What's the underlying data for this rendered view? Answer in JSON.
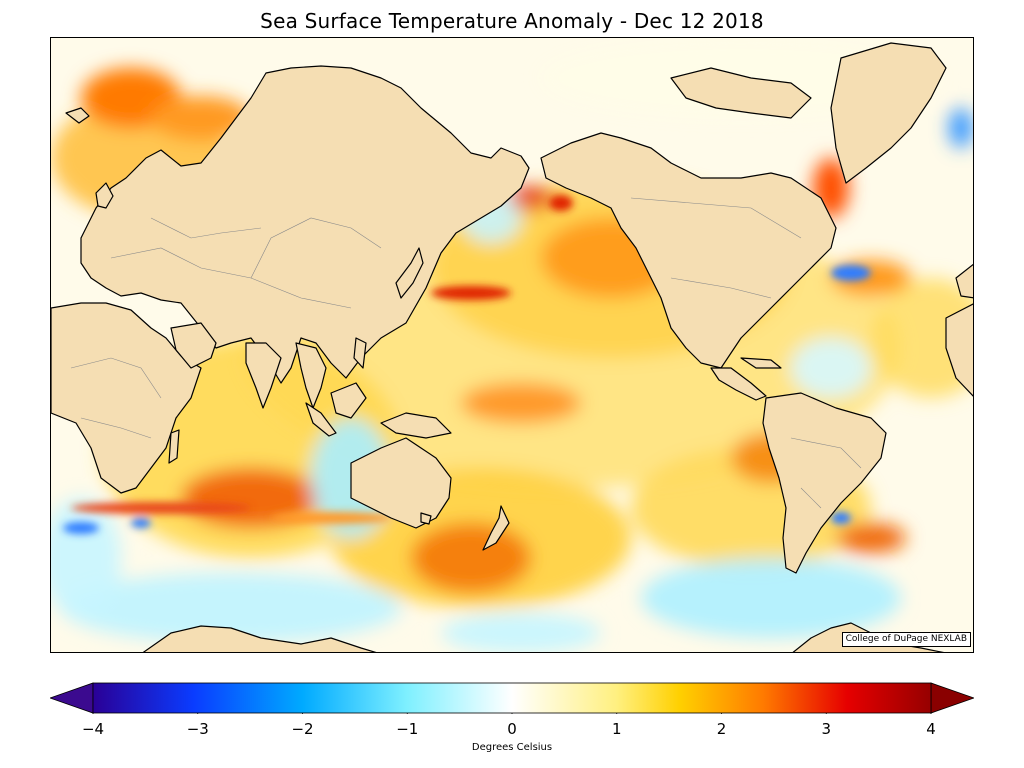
{
  "title": "Sea Surface Temperature Anomaly - Dec 12 2018",
  "credit": "College of DuPage NEXLAB",
  "colorbar": {
    "label": "Degrees Celsius",
    "min": -4,
    "max": 4,
    "ticks": [
      "−4",
      "−3",
      "−2",
      "−1",
      "0",
      "1",
      "2",
      "3",
      "4"
    ],
    "tick_values": [
      -4,
      -3,
      -2,
      -1,
      0,
      1,
      2,
      3,
      4
    ],
    "stops": [
      "#2a0096",
      "#0a3cff",
      "#00aaff",
      "#7ff0ff",
      "#ffffff",
      "#fff080",
      "#ffd000",
      "#ff7a00",
      "#e60000",
      "#960000"
    ]
  },
  "colors": {
    "land": "#f5deb3",
    "coastline": "#000000",
    "borders": "#777777",
    "warm": "#ffd24a",
    "hot": "#e8471a",
    "cool": "#aaeeff",
    "cold": "#2f7dff"
  }
}
